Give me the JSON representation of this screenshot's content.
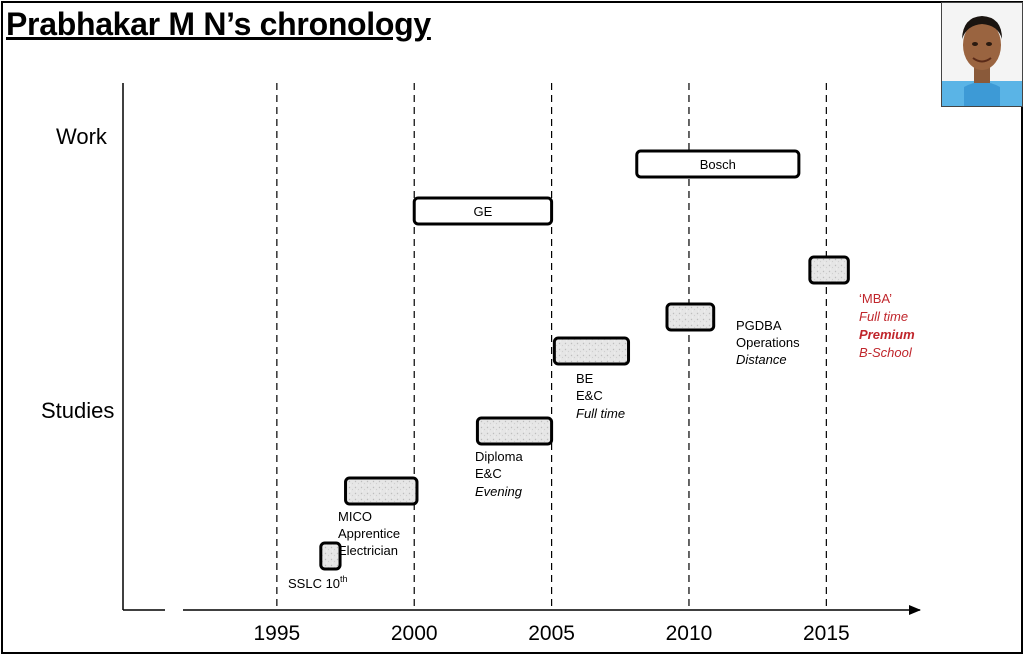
{
  "title": "Prabhakar M N’s chronology",
  "rows": {
    "work": "Work",
    "studies": "Studies"
  },
  "axis": {
    "range": [
      1989.4,
      2018.7
    ],
    "ticks": [
      1995,
      2000,
      2005,
      2010,
      2015
    ],
    "gridlines": [
      1995,
      2000,
      2005,
      2010,
      2015
    ]
  },
  "work_bars": [
    {
      "label": "GE",
      "start": 2000,
      "end": 2005
    },
    {
      "label": "Bosch",
      "start": 2008.1,
      "end": 2014
    }
  ],
  "study_bars": [
    {
      "name": "sslc",
      "start": 1996.6,
      "end": 1997.3,
      "level": 1
    },
    {
      "name": "mico",
      "start": 1997.5,
      "end": 2000.1,
      "level": 2
    },
    {
      "name": "diploma",
      "start": 2002.3,
      "end": 2005,
      "level": 3
    },
    {
      "name": "be",
      "start": 2005.1,
      "end": 2007.8,
      "level": 4
    },
    {
      "name": "pgdba",
      "start": 2009.2,
      "end": 2010.9,
      "level": 5
    },
    {
      "name": "mba",
      "start": 2014.4,
      "end": 2015.8,
      "level": 6
    }
  ],
  "annotations": {
    "sslc": [
      "SSLC 10",
      "th"
    ],
    "mico": [
      "MICO",
      "Apprentice",
      "Electrician"
    ],
    "diploma": [
      "Diploma",
      "E&C",
      "Evening"
    ],
    "be": [
      "BE",
      "E&C",
      "Full time"
    ],
    "pgdba": [
      "PGDBA",
      "Operations",
      "Distance"
    ],
    "mba": [
      "‘MBA’",
      "Full time",
      "Premium",
      "B-School"
    ]
  },
  "colors": {
    "accent_red": "#c0262c",
    "photo_bg": "#5ab4e6"
  }
}
